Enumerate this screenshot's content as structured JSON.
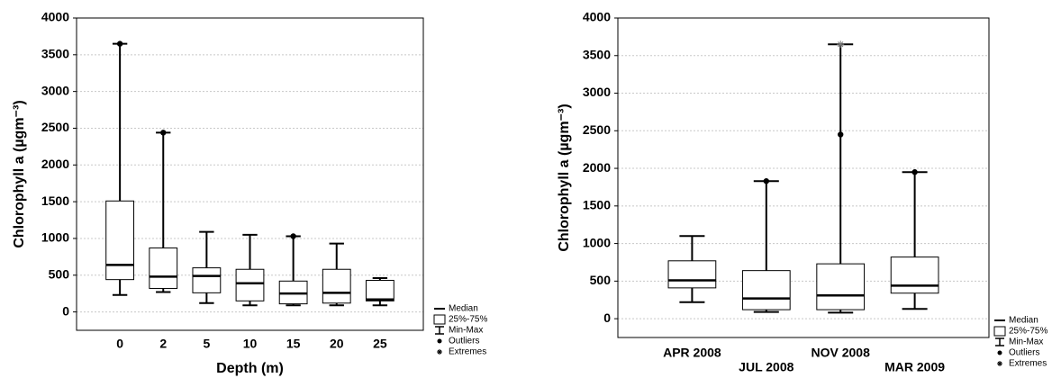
{
  "chart_data": [
    {
      "type": "box",
      "ylabel": "Chlorophyll a (µgm⁻³)",
      "xlabel": "Depth (m)",
      "categories": [
        "0",
        "2",
        "5",
        "10",
        "15",
        "20",
        "25"
      ],
      "min": [
        230,
        270,
        120,
        90,
        90,
        90,
        90
      ],
      "q1": [
        440,
        320,
        260,
        150,
        110,
        120,
        150
      ],
      "median": [
        640,
        480,
        490,
        390,
        250,
        260,
        170
      ],
      "q3": [
        1510,
        870,
        600,
        580,
        420,
        580,
        430
      ],
      "max": [
        3650,
        2440,
        1090,
        1050,
        1030,
        930,
        460
      ],
      "outliers": [
        [
          3650
        ],
        [
          2440
        ],
        [],
        [],
        [
          1030
        ],
        [],
        []
      ],
      "extremes": [
        [],
        [],
        [],
        [],
        [],
        [],
        []
      ],
      "ylim": [
        -250,
        4000
      ],
      "yticks": [
        0,
        500,
        1000,
        1500,
        2000,
        2500,
        3000,
        3500,
        4000
      ],
      "grid": true,
      "color": "#000000",
      "box_fill": "#ffffff",
      "legend": "right",
      "legend_labels": [
        "Median",
        "25%-75%",
        "Min-Max",
        "Outliers",
        "Extremes"
      ]
    },
    {
      "type": "box",
      "ylabel": "Chlorophyll a (µgm⁻³)",
      "categories": [
        "APR 2008",
        "JUL 2008",
        "NOV 2008",
        "MAR 2009"
      ],
      "min": [
        220,
        90,
        80,
        130
      ],
      "q1": [
        410,
        120,
        120,
        340
      ],
      "median": [
        510,
        270,
        310,
        440
      ],
      "q3": [
        770,
        640,
        730,
        820
      ],
      "max": [
        1100,
        1830,
        3650,
        1950
      ],
      "outliers": [
        [],
        [
          1830
        ],
        [
          2450
        ],
        [
          1950
        ]
      ],
      "extremes": [
        [],
        [],
        [
          3650
        ],
        []
      ],
      "ylim": [
        -250,
        4000
      ],
      "yticks": [
        0,
        500,
        1000,
        1500,
        2000,
        2500,
        3000,
        3500,
        4000
      ],
      "grid": true,
      "color": "#000000",
      "box_fill": "#ffffff",
      "legend": "right",
      "legend_labels": [
        "Median",
        "25%-75%",
        "Min-Max",
        "Outliers",
        "Extremes"
      ]
    }
  ]
}
